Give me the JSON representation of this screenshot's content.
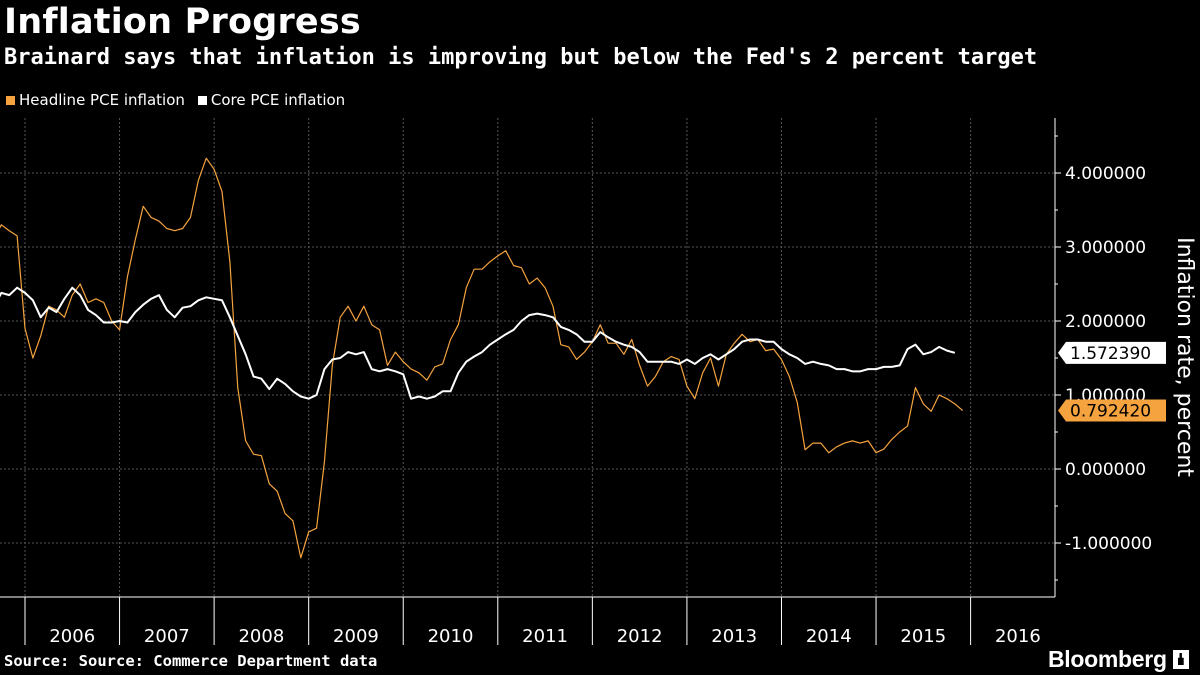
{
  "title": "Inflation Progress",
  "subtitle": "Brainard says that inflation is improving but below the Fed's 2 percent target",
  "source": "Source: Source: Commerce Department data",
  "brand": "Bloomberg",
  "colors": {
    "headline": "#f5a33e",
    "core": "#ffffff",
    "grid": "#555555"
  },
  "chart_data": {
    "type": "line",
    "title": "Inflation Progress",
    "subtitle": "Brainard says that inflation is improving but below the Fed's 2 percent target",
    "xlabel": "",
    "ylabel": "Inflation rate, percent",
    "x_unit": "monthly, Jan 2005 - Jul 2016",
    "x_start": "2005-01",
    "x_ticks": [
      "2006",
      "2007",
      "2008",
      "2009",
      "2010",
      "2011",
      "2012",
      "2013",
      "2014",
      "2015",
      "2016"
    ],
    "y_ticks": [
      "4.000000",
      "3.000000",
      "2.000000",
      "1.000000",
      "0.000000",
      "-1.000000"
    ],
    "y_tick_values": [
      4,
      3,
      2,
      1,
      0,
      -1
    ],
    "ylim": [
      -1.6,
      4.6
    ],
    "grid": true,
    "legend_position": "top-left",
    "series": [
      {
        "name": "Headline PCE inflation",
        "color": "#f5a33e",
        "end_label": "0.792420",
        "values": [
          3.75,
          3.5,
          2.93,
          2.9,
          3.25,
          3.0,
          2.88,
          3.0,
          3.1,
          3.3,
          3.22,
          3.15,
          1.9,
          1.5,
          1.8,
          2.2,
          2.15,
          2.05,
          2.35,
          2.5,
          2.25,
          2.3,
          2.25,
          2.0,
          1.88,
          2.6,
          3.1,
          3.55,
          3.4,
          3.35,
          3.25,
          3.22,
          3.25,
          3.4,
          3.9,
          4.2,
          4.05,
          3.75,
          2.8,
          1.1,
          0.38,
          0.2,
          0.18,
          -0.2,
          -0.3,
          -0.6,
          -0.7,
          -1.2,
          -0.85,
          -0.8,
          0.1,
          1.4,
          2.05,
          2.2,
          2.0,
          2.2,
          1.95,
          1.88,
          1.4,
          1.58,
          1.45,
          1.35,
          1.3,
          1.2,
          1.38,
          1.42,
          1.75,
          1.95,
          2.45,
          2.7,
          2.7,
          2.8,
          2.88,
          2.95,
          2.75,
          2.72,
          2.5,
          2.58,
          2.45,
          2.2,
          1.68,
          1.65,
          1.48,
          1.58,
          1.72,
          1.95,
          1.7,
          1.7,
          1.55,
          1.75,
          1.4,
          1.12,
          1.25,
          1.45,
          1.52,
          1.48,
          1.12,
          0.95,
          1.3,
          1.5,
          1.12,
          1.55,
          1.7,
          1.82,
          1.72,
          1.75,
          1.6,
          1.62,
          1.48,
          1.25,
          0.9,
          0.26,
          0.35,
          0.35,
          0.22,
          0.3,
          0.35,
          0.38,
          0.35,
          0.38,
          0.22,
          0.27,
          0.4,
          0.5,
          0.58,
          1.1,
          0.88,
          0.78,
          1.0,
          0.95,
          0.88,
          0.79
        ]
      },
      {
        "name": "Core PCE inflation",
        "color": "#ffffff",
        "end_label": "1.572390",
        "values": [
          2.15,
          2.22,
          2.3,
          2.28,
          2.15,
          2.12,
          2.12,
          2.22,
          2.18,
          2.38,
          2.35,
          2.45,
          2.38,
          2.28,
          2.05,
          2.18,
          2.12,
          2.3,
          2.45,
          2.35,
          2.15,
          2.08,
          1.98,
          1.98,
          2.0,
          1.98,
          2.12,
          2.22,
          2.3,
          2.35,
          2.15,
          2.05,
          2.18,
          2.2,
          2.28,
          2.32,
          2.3,
          2.28,
          2.05,
          1.8,
          1.55,
          1.25,
          1.22,
          1.08,
          1.22,
          1.15,
          1.05,
          0.98,
          0.95,
          1.0,
          1.35,
          1.48,
          1.5,
          1.58,
          1.55,
          1.58,
          1.35,
          1.32,
          1.35,
          1.32,
          1.28,
          0.95,
          0.98,
          0.95,
          0.98,
          1.05,
          1.05,
          1.3,
          1.45,
          1.52,
          1.58,
          1.68,
          1.75,
          1.82,
          1.88,
          2.0,
          2.08,
          2.1,
          2.08,
          2.05,
          1.92,
          1.88,
          1.82,
          1.72,
          1.72,
          1.85,
          1.78,
          1.72,
          1.68,
          1.65,
          1.58,
          1.45,
          1.45,
          1.45,
          1.45,
          1.42,
          1.48,
          1.42,
          1.5,
          1.55,
          1.48,
          1.55,
          1.62,
          1.72,
          1.75,
          1.75,
          1.72,
          1.72,
          1.62,
          1.55,
          1.5,
          1.42,
          1.45,
          1.42,
          1.4,
          1.35,
          1.35,
          1.32,
          1.32,
          1.35,
          1.35,
          1.38,
          1.38,
          1.4,
          1.62,
          1.68,
          1.55,
          1.58,
          1.65,
          1.6,
          1.57
        ]
      }
    ]
  }
}
